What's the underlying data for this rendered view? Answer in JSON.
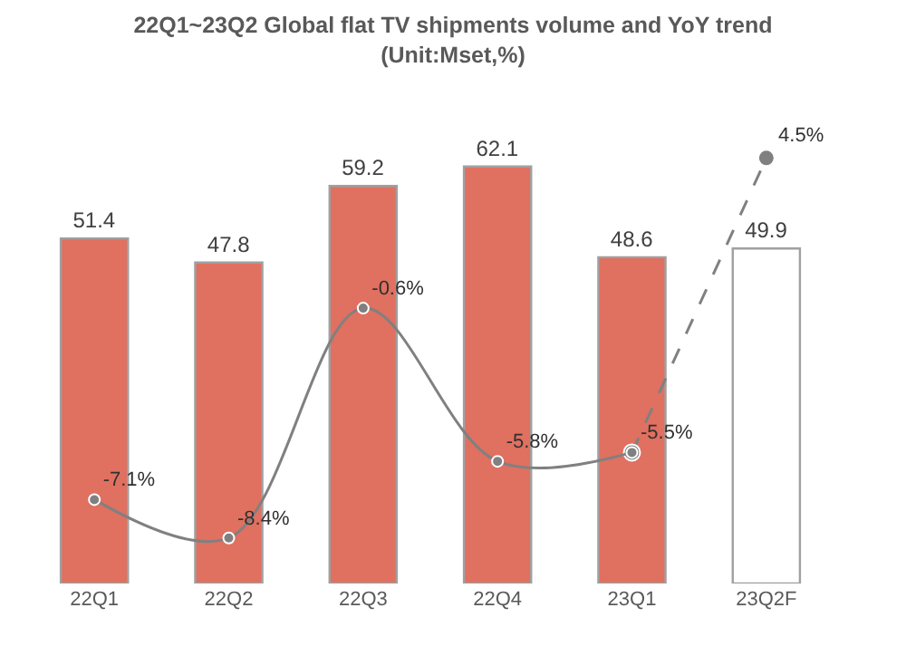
{
  "chart_data": {
    "type": "bar",
    "title": "22Q1~23Q2 Global flat TV shipments volume and YoY trend",
    "subtitle": "(Unit:Mset,%)",
    "categories": [
      "22Q1",
      "22Q2",
      "22Q3",
      "22Q4",
      "23Q1",
      "23Q2F"
    ],
    "series": [
      {
        "values": [
          51.4,
          47.8,
          59.2,
          62.1,
          48.6,
          49.9
        ],
        "colors": [
          "#e07060",
          "#e07060",
          "#e07060",
          "#e07060",
          "#e07060",
          "#ffffff"
        ],
        "value_labels": [
          "51.4",
          "47.8",
          "59.2",
          "62.1",
          "48.6",
          "49.9"
        ]
      },
      {
        "type": "line",
        "axis": "y2",
        "color": "#808080",
        "line_style": "dashed",
        "marker": "circle",
        "values": [
          null,
          null,
          null,
          null,
          -5.5,
          4.5
        ],
        "value_labels": [
          null,
          null,
          null,
          null,
          null,
          "4.5%"
        ]
      },
      {
        "type": "line",
        "axis": "y2",
        "color": "#808080",
        "line_style": "solid",
        "marker": "circle",
        "values": [
          -7.1,
          -8.4,
          -0.6,
          -5.8,
          -5.5,
          null
        ],
        "value_labels": [
          "-7.1%",
          "-8.4%",
          "-0.6%",
          "-5.8%",
          "-5.5%",
          null
        ]
      }
    ],
    "tick_labels": "x",
    "grid": false
  }
}
